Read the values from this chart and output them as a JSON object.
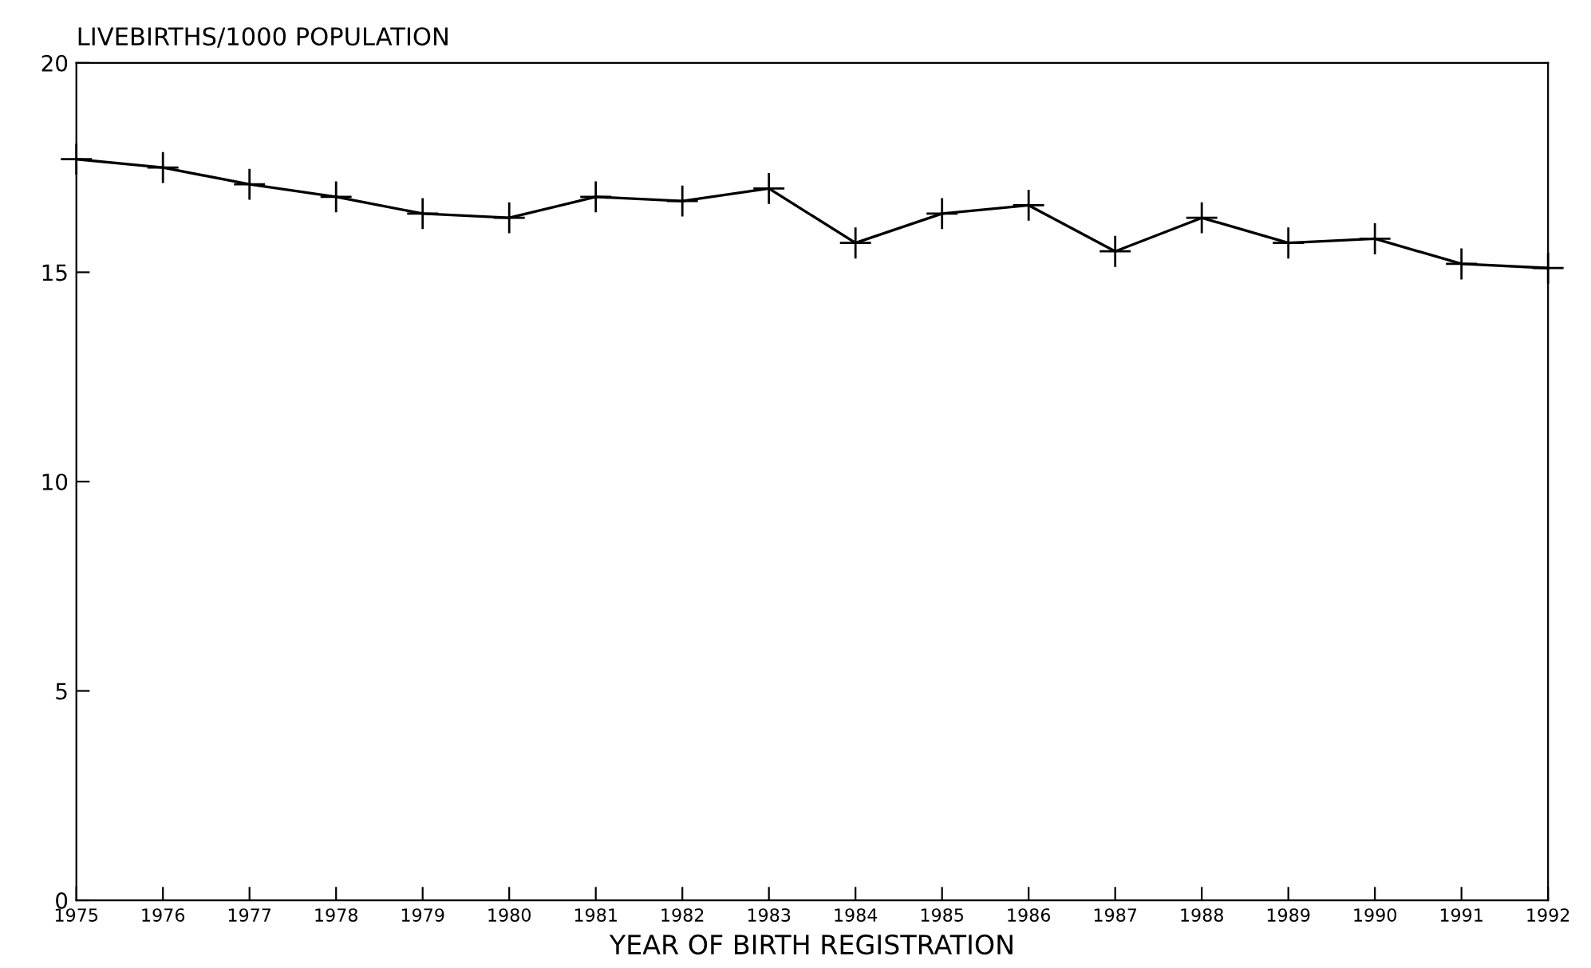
{
  "chart_data": {
    "type": "line",
    "ylabel": "LIVEBIRTHS/1000 POPULATION",
    "xlabel": "YEAR OF BIRTH REGISTRATION",
    "x": [
      1975,
      1976,
      1977,
      1978,
      1979,
      1980,
      1981,
      1982,
      1983,
      1984,
      1985,
      1986,
      1987,
      1988,
      1989,
      1990,
      1991,
      1992
    ],
    "series": [
      {
        "color": "#000000",
        "values": [
          17.7,
          17.5,
          17.1,
          16.8,
          16.4,
          16.3,
          16.8,
          16.7,
          17.0,
          15.7,
          16.4,
          16.6,
          15.5,
          16.3,
          15.7,
          15.8,
          15.2,
          15.1
        ]
      }
    ],
    "xlim": [
      1975,
      1992
    ],
    "xticks": [
      1975,
      1976,
      1977,
      1978,
      1979,
      1980,
      1981,
      1982,
      1983,
      1984,
      1985,
      1986,
      1987,
      1988,
      1989,
      1990,
      1991,
      1992
    ],
    "ylim": [
      0,
      20
    ],
    "yticks": [
      0,
      5,
      10,
      15,
      20
    ],
    "marker": "cross",
    "line_style": "solid",
    "grid": false,
    "legend": false
  }
}
